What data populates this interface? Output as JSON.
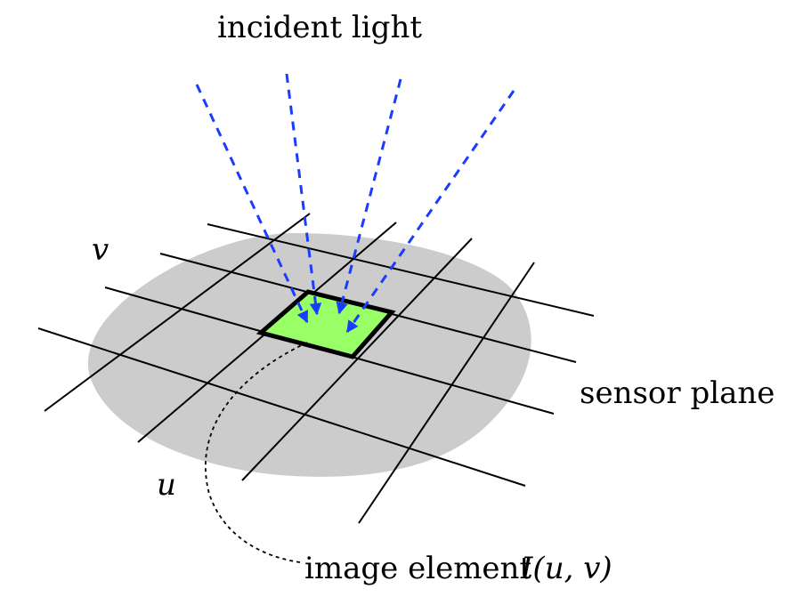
{
  "labels": {
    "incident_light": "incident light",
    "sensor_plane": "sensor plane",
    "axis_u": "u",
    "axis_v": "v",
    "image_element_prefix": "image element",
    "image_element_symbol": "I(u, v)"
  },
  "colors": {
    "sensor_plane_fill": "#cccccc",
    "pixel_fill": "#99ff66",
    "light_rays": "#1a3cff",
    "grid_lines": "#000000"
  }
}
